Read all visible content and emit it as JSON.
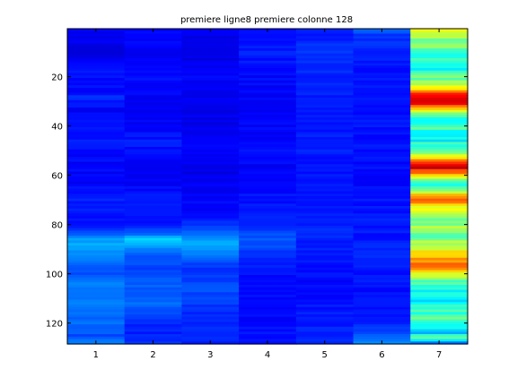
{
  "chart_data": {
    "type": "heatmap",
    "title": "premiere ligne8 premiere colonne 128",
    "xlabel": "",
    "ylabel": "",
    "x_ticks": [
      "1",
      "2",
      "3",
      "4",
      "5",
      "6",
      "7"
    ],
    "y_ticks": [
      "20",
      "40",
      "60",
      "80",
      "100",
      "120"
    ],
    "y_tick_values": [
      20,
      40,
      60,
      80,
      100,
      120
    ],
    "xlim": [
      0.5,
      7.5
    ],
    "ylim": [
      128.5,
      0.5
    ],
    "y_direction": "reversed",
    "n_rows": 128,
    "n_cols": 7,
    "clim": [
      0,
      1
    ],
    "colormap": "jet",
    "grid": false,
    "legend": "none",
    "column_profiles": [
      {
        "column": 1,
        "base": 0.13,
        "points": [
          [
            1,
            0.12
          ],
          [
            10,
            0.1
          ],
          [
            18,
            0.14
          ],
          [
            26,
            0.13
          ],
          [
            28,
            0.17
          ],
          [
            34,
            0.12
          ],
          [
            46,
            0.15
          ],
          [
            52,
            0.13
          ],
          [
            62,
            0.12
          ],
          [
            70,
            0.15
          ],
          [
            80,
            0.14
          ],
          [
            84,
            0.2
          ],
          [
            86,
            0.28
          ],
          [
            89,
            0.3
          ],
          [
            92,
            0.26
          ],
          [
            96,
            0.22
          ],
          [
            100,
            0.2
          ],
          [
            104,
            0.24
          ],
          [
            108,
            0.22
          ],
          [
            112,
            0.25
          ],
          [
            118,
            0.22
          ],
          [
            122,
            0.23
          ],
          [
            125,
            0.2
          ],
          [
            128,
            0.24
          ]
        ]
      },
      {
        "column": 2,
        "base": 0.14,
        "points": [
          [
            1,
            0.14
          ],
          [
            10,
            0.11
          ],
          [
            20,
            0.14
          ],
          [
            30,
            0.12
          ],
          [
            40,
            0.12
          ],
          [
            46,
            0.15
          ],
          [
            52,
            0.13
          ],
          [
            62,
            0.12
          ],
          [
            70,
            0.15
          ],
          [
            80,
            0.14
          ],
          [
            84,
            0.24
          ],
          [
            86,
            0.34
          ],
          [
            88,
            0.3
          ],
          [
            90,
            0.26
          ],
          [
            92,
            0.22
          ],
          [
            96,
            0.2
          ],
          [
            100,
            0.19
          ],
          [
            104,
            0.22
          ],
          [
            108,
            0.2
          ],
          [
            112,
            0.24
          ],
          [
            118,
            0.17
          ],
          [
            124,
            0.15
          ],
          [
            128,
            0.18
          ]
        ]
      },
      {
        "column": 3,
        "base": 0.12,
        "points": [
          [
            1,
            0.11
          ],
          [
            10,
            0.1
          ],
          [
            20,
            0.12
          ],
          [
            30,
            0.11
          ],
          [
            40,
            0.11
          ],
          [
            50,
            0.12
          ],
          [
            58,
            0.1
          ],
          [
            66,
            0.12
          ],
          [
            76,
            0.13
          ],
          [
            84,
            0.22
          ],
          [
            88,
            0.3
          ],
          [
            92,
            0.24
          ],
          [
            96,
            0.18
          ],
          [
            100,
            0.17
          ],
          [
            104,
            0.2
          ],
          [
            110,
            0.19
          ],
          [
            114,
            0.17
          ],
          [
            120,
            0.16
          ],
          [
            128,
            0.16
          ]
        ]
      },
      {
        "column": 4,
        "base": 0.14,
        "points": [
          [
            1,
            0.13
          ],
          [
            10,
            0.15
          ],
          [
            20,
            0.13
          ],
          [
            30,
            0.12
          ],
          [
            40,
            0.12
          ],
          [
            50,
            0.13
          ],
          [
            60,
            0.12
          ],
          [
            70,
            0.14
          ],
          [
            80,
            0.15
          ],
          [
            86,
            0.22
          ],
          [
            92,
            0.18
          ],
          [
            96,
            0.15
          ],
          [
            104,
            0.13
          ],
          [
            112,
            0.13
          ],
          [
            120,
            0.13
          ],
          [
            128,
            0.15
          ]
        ]
      },
      {
        "column": 5,
        "base": 0.15,
        "points": [
          [
            1,
            0.15
          ],
          [
            10,
            0.17
          ],
          [
            20,
            0.16
          ],
          [
            30,
            0.15
          ],
          [
            40,
            0.15
          ],
          [
            50,
            0.15
          ],
          [
            60,
            0.14
          ],
          [
            70,
            0.15
          ],
          [
            80,
            0.16
          ],
          [
            86,
            0.16
          ],
          [
            96,
            0.14
          ],
          [
            104,
            0.13
          ],
          [
            112,
            0.14
          ],
          [
            120,
            0.15
          ],
          [
            128,
            0.17
          ]
        ]
      },
      {
        "column": 6,
        "base": 0.15,
        "points": [
          [
            1,
            0.22
          ],
          [
            3,
            0.18
          ],
          [
            10,
            0.15
          ],
          [
            20,
            0.14
          ],
          [
            30,
            0.14
          ],
          [
            40,
            0.14
          ],
          [
            50,
            0.14
          ],
          [
            60,
            0.13
          ],
          [
            70,
            0.14
          ],
          [
            80,
            0.15
          ],
          [
            86,
            0.14
          ],
          [
            92,
            0.17
          ],
          [
            96,
            0.15
          ],
          [
            104,
            0.14
          ],
          [
            112,
            0.14
          ],
          [
            120,
            0.16
          ],
          [
            124,
            0.19
          ],
          [
            128,
            0.26
          ]
        ]
      },
      {
        "column": 7,
        "base": 0.45,
        "points": [
          [
            1,
            0.58
          ],
          [
            4,
            0.52
          ],
          [
            8,
            0.5
          ],
          [
            12,
            0.42
          ],
          [
            16,
            0.36
          ],
          [
            20,
            0.46
          ],
          [
            24,
            0.6
          ],
          [
            26,
            0.78
          ],
          [
            28,
            0.88
          ],
          [
            30,
            0.92
          ],
          [
            32,
            0.8
          ],
          [
            34,
            0.62
          ],
          [
            36,
            0.44
          ],
          [
            38,
            0.4
          ],
          [
            40,
            0.48
          ],
          [
            42,
            0.4
          ],
          [
            44,
            0.34
          ],
          [
            46,
            0.38
          ],
          [
            50,
            0.5
          ],
          [
            53,
            0.62
          ],
          [
            55,
            0.84
          ],
          [
            57,
            0.9
          ],
          [
            59,
            0.78
          ],
          [
            61,
            0.56
          ],
          [
            63,
            0.4
          ],
          [
            66,
            0.52
          ],
          [
            68,
            0.72
          ],
          [
            70,
            0.8
          ],
          [
            72,
            0.66
          ],
          [
            75,
            0.55
          ],
          [
            78,
            0.48
          ],
          [
            82,
            0.54
          ],
          [
            85,
            0.46
          ],
          [
            88,
            0.56
          ],
          [
            91,
            0.64
          ],
          [
            94,
            0.7
          ],
          [
            97,
            0.76
          ],
          [
            99,
            0.62
          ],
          [
            102,
            0.5
          ],
          [
            106,
            0.4
          ],
          [
            110,
            0.36
          ],
          [
            114,
            0.42
          ],
          [
            118,
            0.46
          ],
          [
            122,
            0.38
          ],
          [
            124,
            0.32
          ],
          [
            126,
            0.44
          ],
          [
            128,
            0.28
          ]
        ]
      }
    ]
  }
}
